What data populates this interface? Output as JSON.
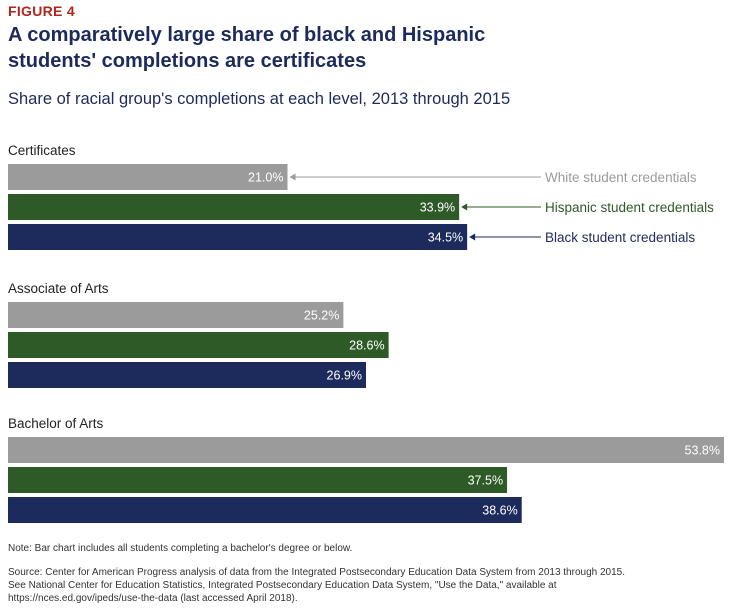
{
  "figure_label": "FIGURE 4",
  "title": "A comparatively large share of black and Hispanic students' completions are certificates",
  "subtitle": "Share of racial group's completions at each level, 2013 through 2015",
  "note": "Note: Bar chart includes all students completing a bachelor's degree or below.",
  "source": "Source: Center for American Progress analysis of data from the Integrated Postsecondary Education Data System from 2013 through 2015. See National Center for Education Statistics, Integrated Postsecondary Education Data System, \"Use the Data,\" available at https://nces.ed.gov/ipeds/use-the-data (last accessed April 2018).",
  "colors": {
    "white": "#9b9b9b",
    "hispanic": "#2d5a27",
    "black": "#1c2a5c"
  },
  "chart_data": {
    "type": "bar",
    "orientation": "horizontal",
    "unit": "%",
    "xlim": [
      0,
      54
    ],
    "grid": false,
    "legend": "inline callouts on first group",
    "categories": [
      "Certificates",
      "Associate of Arts",
      "Bachelor of Arts"
    ],
    "series": [
      {
        "name": "White student credentials",
        "key": "white",
        "values": [
          21.0,
          25.2,
          53.8
        ]
      },
      {
        "name": "Hispanic student credentials",
        "key": "hispanic",
        "values": [
          33.9,
          28.6,
          37.5
        ]
      },
      {
        "name": "Black student credentials",
        "key": "black",
        "values": [
          34.5,
          26.9,
          38.6
        ]
      }
    ]
  }
}
